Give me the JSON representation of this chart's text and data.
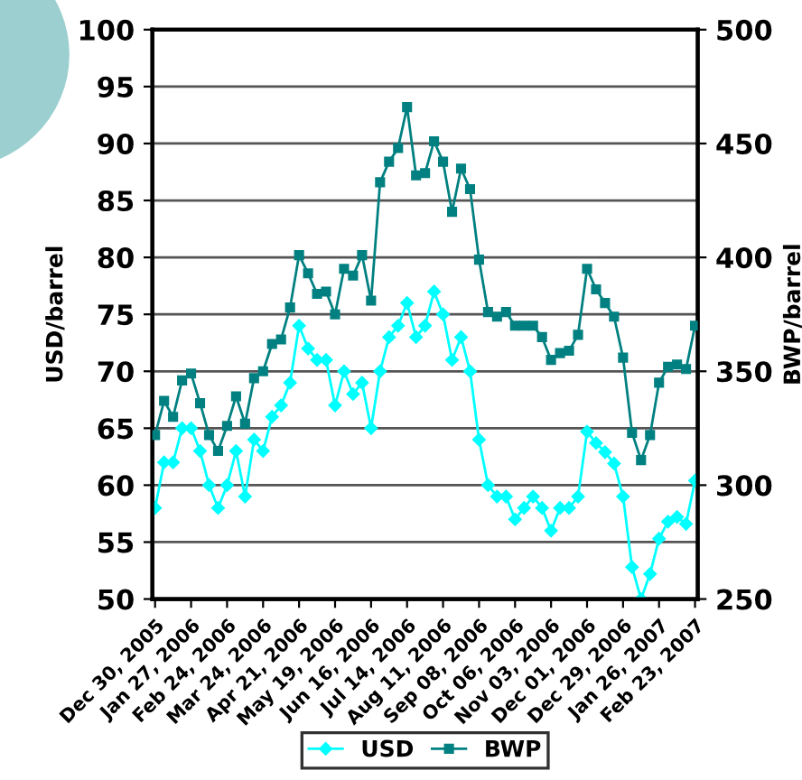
{
  "chart_data": {
    "type": "line",
    "ylabel": "USD/barrel",
    "y2label": "BWP/barrel",
    "categories": [
      "Dec 30, 2005",
      null,
      null,
      null,
      "Jan 27, 2006",
      null,
      null,
      null,
      "Feb 24, 2006",
      null,
      null,
      null,
      "Mar 24, 2006",
      null,
      null,
      null,
      "Apr 21, 2006",
      null,
      null,
      null,
      "May 19, 2006",
      null,
      null,
      null,
      "Jun 16, 2006",
      null,
      null,
      null,
      "Jul 14, 2006",
      null,
      null,
      null,
      "Aug 11, 2006",
      null,
      null,
      null,
      "Sep 08, 2006",
      null,
      null,
      null,
      "Oct 06, 2006",
      null,
      null,
      null,
      "Nov 03, 2006",
      null,
      null,
      null,
      "Dec 01, 2006",
      null,
      null,
      null,
      "Dec 29, 2006",
      null,
      null,
      null,
      "Jan 26, 2007",
      null,
      null,
      null,
      "Feb 23, 2007"
    ],
    "series": [
      {
        "name": "USD",
        "color": "#00ffff",
        "marker": "diamond",
        "values": [
          58,
          62,
          62,
          65,
          65,
          63,
          60,
          58,
          60,
          63,
          59,
          64,
          63,
          66,
          67,
          69,
          74,
          72,
          71,
          71,
          67,
          70,
          68,
          69,
          65,
          70,
          73,
          74,
          76,
          73,
          74,
          77,
          75,
          71,
          73,
          70,
          64,
          60,
          59,
          59,
          57,
          58,
          59,
          58,
          56,
          58,
          58,
          59,
          64.7,
          63.7,
          62.9,
          61.9,
          59,
          52.8,
          50,
          52.2,
          55.3,
          56.8,
          57.2,
          56.6,
          60.4
        ]
      },
      {
        "name": "BWP",
        "color": "#008080",
        "marker": "square",
        "axis": "y2",
        "values": [
          322,
          337,
          330,
          346,
          349,
          336,
          322,
          315,
          326,
          339,
          327,
          347,
          350,
          362,
          364,
          378,
          401,
          393,
          384,
          385,
          375,
          395,
          392,
          401,
          381,
          433,
          442,
          448,
          466,
          436,
          437,
          451,
          442,
          420,
          439,
          430,
          399,
          376,
          374,
          376,
          370,
          370,
          370,
          365,
          355,
          358,
          359,
          366,
          395,
          386,
          380,
          374,
          356,
          323,
          311,
          322,
          345,
          352,
          353,
          351,
          370
        ]
      }
    ],
    "ylim": [
      50,
      100
    ],
    "yticks": [
      50,
      55,
      60,
      65,
      70,
      75,
      80,
      85,
      90,
      95,
      100
    ],
    "y2lim": [
      250,
      500
    ],
    "y2ticks": [
      250,
      300,
      350,
      400,
      450,
      500
    ],
    "grid": "y",
    "legend": "bottom"
  }
}
